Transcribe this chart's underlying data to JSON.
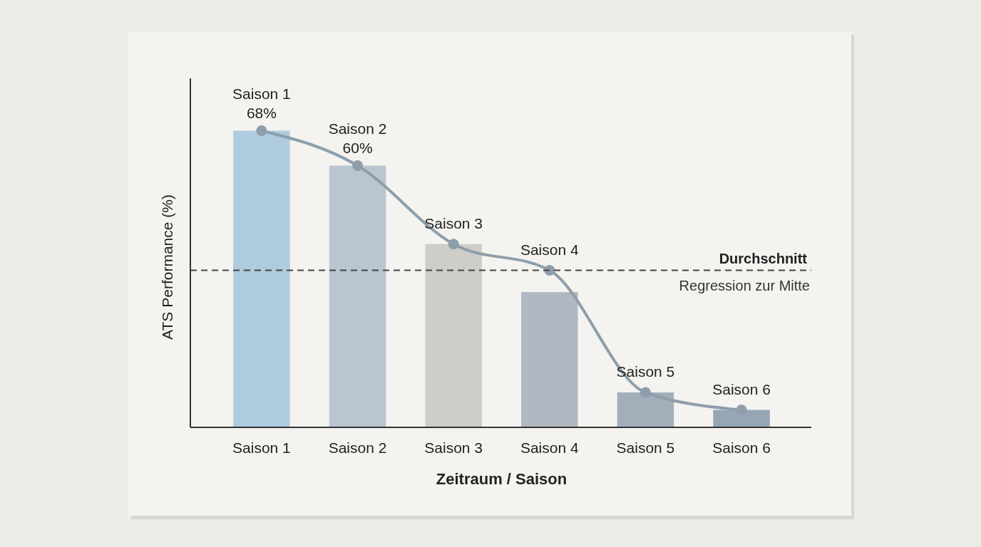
{
  "chart_data": {
    "type": "bar",
    "xlabel": "Zeitraum / Saison",
    "ylabel": "ATS Performance (%)",
    "categories": [
      "Saison 1",
      "Saison 2",
      "Saison 3",
      "Saison 4",
      "Saison 5",
      "Saison 6"
    ],
    "ylim": [
      0,
      80
    ],
    "tick_labels": "x",
    "series": [
      {
        "values": [
          68,
          60,
          42,
          31,
          8,
          4
        ],
        "colors": [
          "#a7c7dc",
          "#b3c0cb",
          "#cac9c2",
          "#a9b1bb",
          "#99a7b5",
          "#8d9dae"
        ]
      },
      {
        "type": "line",
        "color": "#8e9eab",
        "values": [
          68,
          60,
          42,
          36,
          8,
          4
        ],
        "value_labels": [
          "68%",
          "60%",
          null,
          null,
          null,
          null
        ]
      }
    ],
    "marker": "circle",
    "ref_lines": [
      {
        "axis": "y",
        "value": 36,
        "label": "Durchschnitt",
        "color": "#444444",
        "line_style": "dashed"
      }
    ],
    "annotations": [
      {
        "text": "Saison 1",
        "x": "Saison 1",
        "y": 68
      },
      {
        "text": "Saison 2",
        "x": "Saison 2",
        "y": 60
      },
      {
        "text": "Saison 3",
        "x": "Saison 3",
        "y": 42
      },
      {
        "text": "Saison 4",
        "x": "Saison 4",
        "y": 36
      },
      {
        "text": "Saison 5",
        "x": "Saison 5",
        "y": 8
      },
      {
        "text": "Saison 6",
        "x": "Saison 6",
        "y": 4
      },
      "Regression zur Mitte"
    ]
  }
}
